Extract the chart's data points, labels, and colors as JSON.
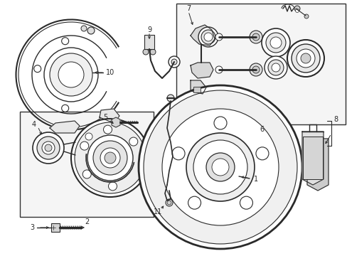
{
  "bg_color": "#ffffff",
  "line_color": "#2a2a2a",
  "box_line_color": "#333333",
  "fig_width": 4.89,
  "fig_height": 3.6,
  "dpi": 100
}
